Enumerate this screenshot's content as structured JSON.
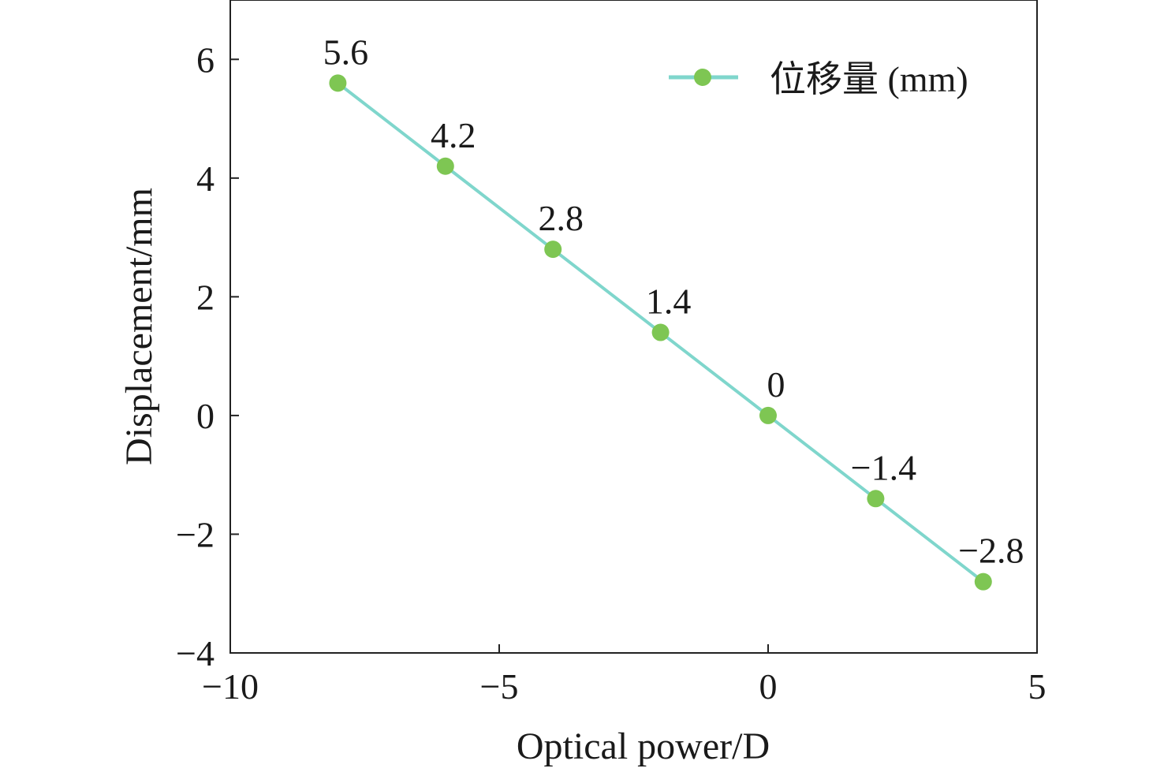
{
  "chart_data": {
    "type": "line",
    "xlabel": "Optical power/D",
    "ylabel": "Displacement/mm",
    "xlim": [
      -10,
      5
    ],
    "ylim": [
      -4,
      7
    ],
    "xticks": [
      -10,
      -5,
      0,
      5
    ],
    "xtick_labels": [
      "−10",
      "−5",
      "0",
      "5"
    ],
    "yticks": [
      -4,
      -2,
      0,
      2,
      4,
      6
    ],
    "ytick_labels": [
      "−4",
      "−2",
      "0",
      "2",
      "4",
      "6"
    ],
    "grid": false,
    "legend_position": "top-right",
    "series": [
      {
        "name": "位移量 (mm)",
        "line_color": "#7fd6cc",
        "marker_color": "#7ec653",
        "x": [
          -8,
          -6,
          -4,
          -2,
          0,
          2,
          4
        ],
        "y": [
          5.6,
          4.2,
          2.8,
          1.4,
          0,
          -1.4,
          -2.8
        ],
        "data_labels": [
          "5.6",
          "4.2",
          "2.8",
          "1.4",
          "0",
          "−1.4",
          "−2.8"
        ]
      }
    ]
  }
}
